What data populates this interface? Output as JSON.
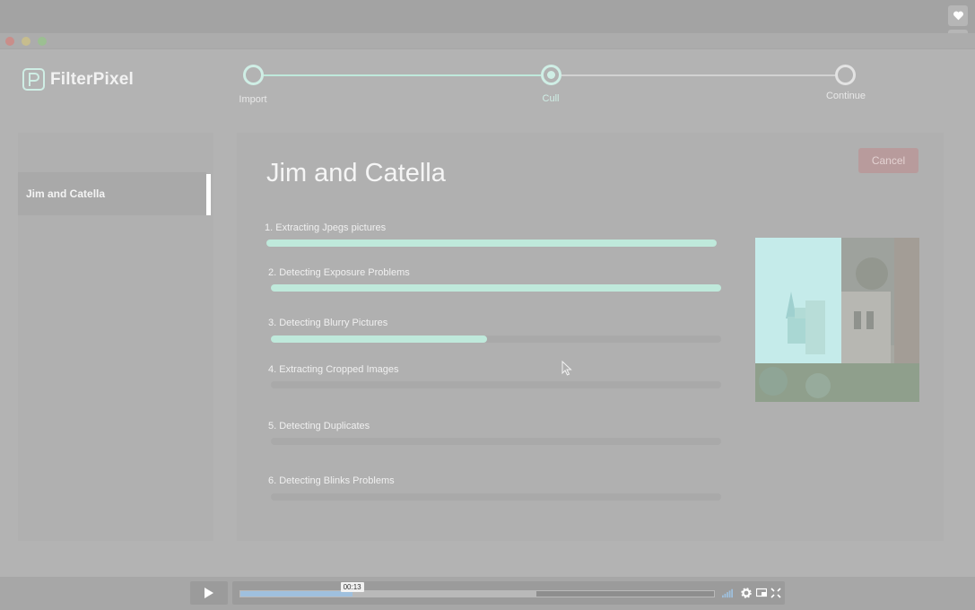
{
  "app": {
    "name": "FilterPixel",
    "accent_color": "#cfeee5",
    "progress_color": "#bfe9db"
  },
  "side_rail": {
    "icons": [
      "heart-icon",
      "clock-icon",
      "layers-icon",
      "send-icon"
    ]
  },
  "stepper": {
    "steps": [
      {
        "label": "Import",
        "state": "done"
      },
      {
        "label": "Cull",
        "state": "active"
      },
      {
        "label": "Continue",
        "state": "pending"
      }
    ]
  },
  "sidebar": {
    "project": "Jim and Catella"
  },
  "main": {
    "title": "Jim and Catella",
    "cancel_label": "Cancel",
    "tasks": [
      {
        "label": "1. Extracting Jpegs pictures",
        "progress": 1.0
      },
      {
        "label": "2. Detecting Exposure Problems",
        "progress": 1.0
      },
      {
        "label": "3. Detecting Blurry Pictures",
        "progress": 0.48
      },
      {
        "label": "4. Extracting Cropped Images",
        "progress": 0.0
      },
      {
        "label": "5. Detecting Duplicates",
        "progress": 0.0
      },
      {
        "label": "6. Detecting Blinks Problems",
        "progress": 0.0
      }
    ]
  },
  "video": {
    "time": "00:13",
    "played": 0.236,
    "buffered": 0.625
  }
}
